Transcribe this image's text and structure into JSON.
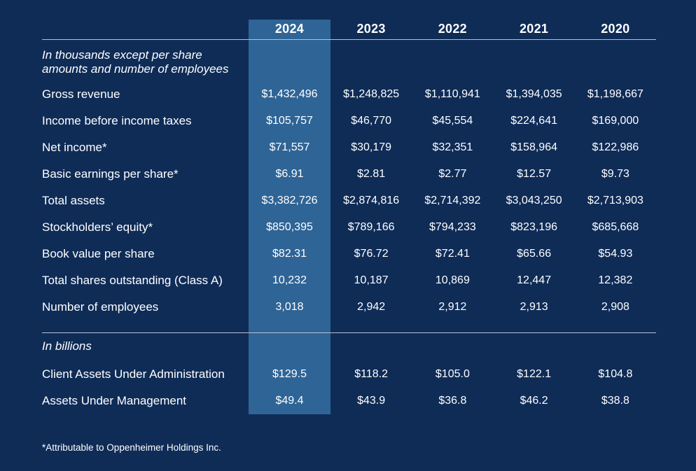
{
  "table": {
    "unit_note_line1": "In thousands except per share",
    "unit_note_line2": "amounts and number of employees",
    "years": [
      "2024",
      "2023",
      "2022",
      "2021",
      "2020"
    ],
    "highlighted_year": "2024",
    "rows": [
      {
        "label": "Gross revenue",
        "values": [
          "$1,432,496",
          "$1,248,825",
          "$1,110,941",
          "$1,394,035",
          "$1,198,667"
        ]
      },
      {
        "label": "Income before income taxes",
        "values": [
          "$105,757",
          "$46,770",
          "$45,554",
          "$224,641",
          "$169,000"
        ]
      },
      {
        "label": "Net income*",
        "values": [
          "$71,557",
          "$30,179",
          "$32,351",
          "$158,964",
          "$122,986"
        ]
      },
      {
        "label": "Basic earnings per share*",
        "values": [
          "$6.91",
          "$2.81",
          "$2.77",
          "$12.57",
          "$9.73"
        ]
      },
      {
        "label": "Total assets",
        "values": [
          "$3,382,726",
          "$2,874,816",
          "$2,714,392",
          "$3,043,250",
          "$2,713,903"
        ]
      },
      {
        "label": "Stockholders’ equity*",
        "values": [
          "$850,395",
          "$789,166",
          "$794,233",
          "$823,196",
          "$685,668"
        ]
      },
      {
        "label": "Book value per share",
        "values": [
          "$82.31",
          "$76.72",
          "$72.41",
          "$65.66",
          "$54.93"
        ]
      },
      {
        "label": "Total shares outstanding (Class A)",
        "values": [
          "10,232",
          "10,187",
          "10,869",
          "12,447",
          "12,382"
        ]
      },
      {
        "label": "Number of employees",
        "values": [
          "3,018",
          "2,942",
          "2,912",
          "2,913",
          "2,908"
        ]
      }
    ],
    "billions_note": "In billions",
    "billions_rows": [
      {
        "label": "Client Assets Under Administration",
        "values": [
          "$129.5",
          "$118.2",
          "$105.0",
          "$122.1",
          "$104.8"
        ]
      },
      {
        "label": "Assets Under Management",
        "values": [
          "$49.4",
          "$43.9",
          "$36.8",
          "$46.2",
          "$38.8"
        ]
      }
    ],
    "footnote": "*Attributable to Oppenheimer Holdings Inc."
  },
  "colors": {
    "background": "#0F2C57",
    "highlight_column": "#2F6496",
    "divider": "#B7C1D1",
    "text": "#FFFFFF"
  }
}
